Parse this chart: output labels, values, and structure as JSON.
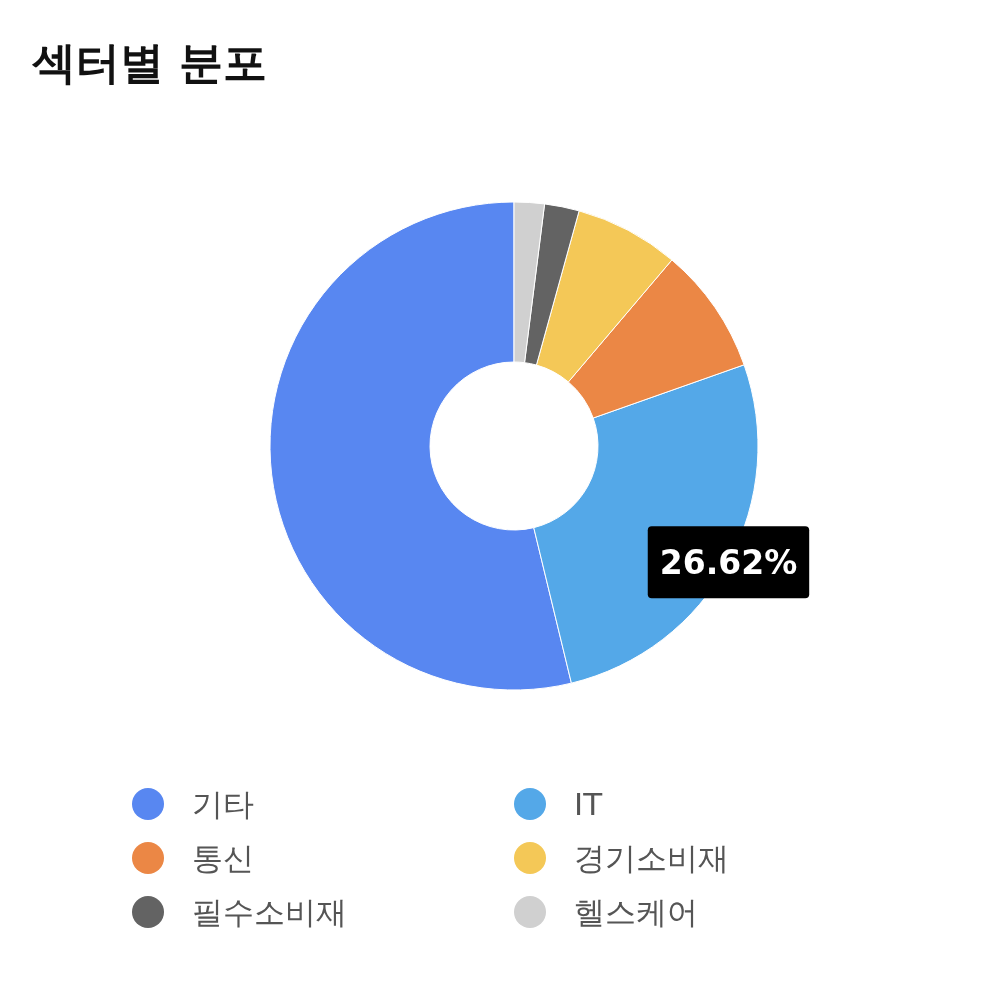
{
  "chart_data": {
    "type": "donut",
    "title": "섹터별 분포",
    "categories": [
      "기타",
      "IT",
      "통신",
      "경기소비재",
      "필수소비재",
      "헬스케어"
    ],
    "values": [
      53.78,
      26.62,
      8.4,
      6.9,
      2.3,
      2.0
    ],
    "colors": [
      "#5887f1",
      "#54a8e8",
      "#eb8745",
      "#f4c857",
      "#636363",
      "#d0d0d0"
    ],
    "value_labels": [
      null,
      "26.62%",
      null,
      null,
      null,
      null
    ],
    "legend": "bottom"
  }
}
